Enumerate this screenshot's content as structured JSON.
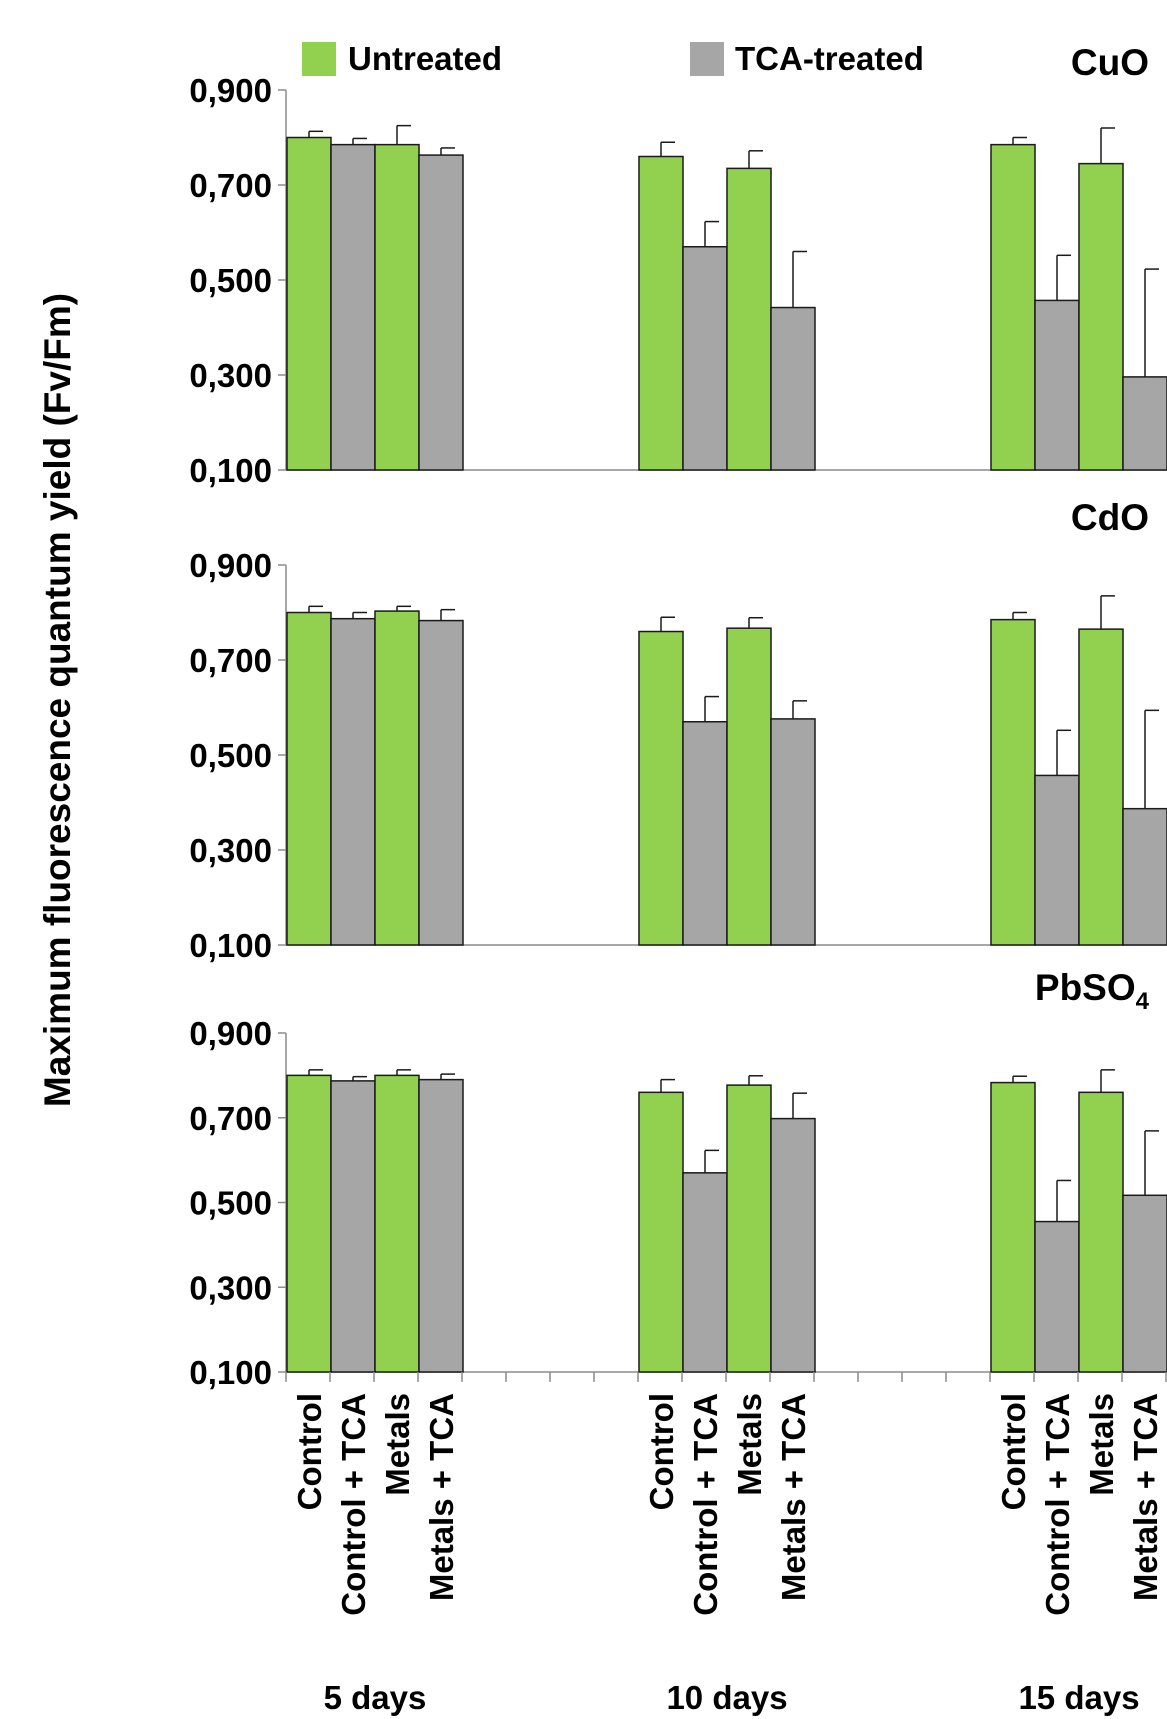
{
  "chart_data": {
    "type": "bar",
    "ylabel": "Maximum fluorescence quantum yield (Fv/Fm)",
    "ylim": [
      0.1,
      0.9
    ],
    "ytick_values": [
      0.1,
      0.3,
      0.5,
      0.7,
      0.9
    ],
    "ytick_labels": [
      "0,100",
      "0,300",
      "0,500",
      "0,700",
      "0,900"
    ],
    "categories": [
      "Control",
      "Control + TCA",
      "Metals",
      "Metals + TCA"
    ],
    "groups": [
      "5 days",
      "10 days",
      "15 days"
    ],
    "legend": {
      "position": "top",
      "items": [
        {
          "label": "Untreated",
          "color": "#92d050"
        },
        {
          "label": "TCA-treated",
          "color": "#a6a6a6"
        }
      ]
    },
    "bar_colors": [
      "#92d050",
      "#a6a6a6",
      "#92d050",
      "#a6a6a6"
    ],
    "panels": [
      {
        "title": "CuO",
        "title_base": "CuO",
        "title_sub": "",
        "values": [
          [
            0.8,
            0.785,
            0.785,
            0.763
          ],
          [
            0.76,
            0.57,
            0.735,
            0.442
          ],
          [
            0.785,
            0.457,
            0.745,
            0.296
          ]
        ],
        "errors": [
          [
            0.013,
            0.013,
            0.04,
            0.015
          ],
          [
            0.03,
            0.053,
            0.037,
            0.118
          ],
          [
            0.015,
            0.095,
            0.075,
            0.227
          ]
        ]
      },
      {
        "title": "CdO",
        "title_base": "CdO",
        "title_sub": "",
        "values": [
          [
            0.8,
            0.787,
            0.803,
            0.783
          ],
          [
            0.76,
            0.57,
            0.767,
            0.576
          ],
          [
            0.785,
            0.457,
            0.765,
            0.387
          ]
        ],
        "errors": [
          [
            0.013,
            0.013,
            0.01,
            0.023
          ],
          [
            0.03,
            0.053,
            0.022,
            0.038
          ],
          [
            0.015,
            0.095,
            0.07,
            0.207
          ]
        ]
      },
      {
        "title": "PbSO4",
        "title_base": "PbSO",
        "title_sub": "4",
        "values": [
          [
            0.8,
            0.787,
            0.8,
            0.79
          ],
          [
            0.76,
            0.57,
            0.777,
            0.698
          ],
          [
            0.783,
            0.455,
            0.76,
            0.517
          ]
        ],
        "errors": [
          [
            0.013,
            0.01,
            0.013,
            0.013
          ],
          [
            0.03,
            0.053,
            0.022,
            0.06
          ],
          [
            0.015,
            0.097,
            0.053,
            0.152
          ]
        ]
      }
    ]
  }
}
